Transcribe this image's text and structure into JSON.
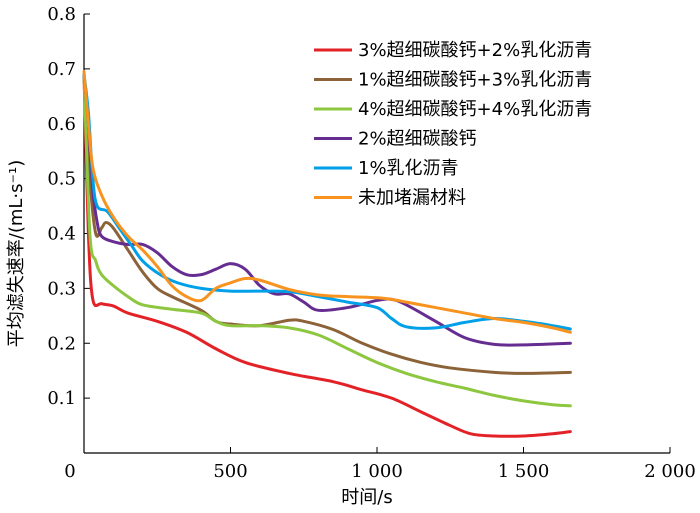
{
  "chart_data": {
    "type": "line",
    "title": "",
    "xlabel": "时间/s",
    "ylabel": "平均滤失速率/(mL·s⁻¹)",
    "xlim": [
      0,
      2000
    ],
    "ylim": [
      0,
      0.8
    ],
    "x_ticks": [
      0,
      500,
      1000,
      1500,
      2000
    ],
    "x_tick_labels": [
      "0",
      "500",
      "1 000",
      "1 500",
      "2 000"
    ],
    "y_ticks": [
      0.1,
      0.2,
      0.3,
      0.4,
      0.5,
      0.6,
      0.7,
      0.8
    ],
    "y_tick_labels": [
      "0.1",
      "0.2",
      "0.3",
      "0.4",
      "0.5",
      "0.6",
      "0.7",
      "0.8"
    ],
    "grid": false,
    "legend_position": "top-right",
    "series": [
      {
        "name": "3%超细碳酸钙+2%乳化沥青",
        "color": "#e32227",
        "points": [
          [
            0,
            0.69
          ],
          [
            15,
            0.4
          ],
          [
            30,
            0.28
          ],
          [
            60,
            0.272
          ],
          [
            100,
            0.268
          ],
          [
            150,
            0.255
          ],
          [
            250,
            0.24
          ],
          [
            350,
            0.22
          ],
          [
            450,
            0.19
          ],
          [
            550,
            0.165
          ],
          [
            700,
            0.145
          ],
          [
            850,
            0.13
          ],
          [
            950,
            0.115
          ],
          [
            1050,
            0.1
          ],
          [
            1150,
            0.075
          ],
          [
            1250,
            0.05
          ],
          [
            1320,
            0.035
          ],
          [
            1400,
            0.031
          ],
          [
            1500,
            0.031
          ],
          [
            1600,
            0.035
          ],
          [
            1660,
            0.039
          ]
        ]
      },
      {
        "name": "1%超细碳酸钙+3%乳化沥青",
        "color": "#8c6239",
        "points": [
          [
            0,
            0.69
          ],
          [
            20,
            0.5
          ],
          [
            40,
            0.4
          ],
          [
            60,
            0.41
          ],
          [
            75,
            0.42
          ],
          [
            100,
            0.41
          ],
          [
            150,
            0.37
          ],
          [
            200,
            0.33
          ],
          [
            250,
            0.3
          ],
          [
            300,
            0.285
          ],
          [
            400,
            0.26
          ],
          [
            450,
            0.24
          ],
          [
            500,
            0.235
          ],
          [
            600,
            0.232
          ],
          [
            700,
            0.242
          ],
          [
            750,
            0.24
          ],
          [
            850,
            0.225
          ],
          [
            950,
            0.2
          ],
          [
            1050,
            0.18
          ],
          [
            1150,
            0.165
          ],
          [
            1250,
            0.155
          ],
          [
            1400,
            0.147
          ],
          [
            1500,
            0.145
          ],
          [
            1660,
            0.147
          ]
        ]
      },
      {
        "name": "4%超细碳酸钙+4%乳化沥青",
        "color": "#8dc63f",
        "points": [
          [
            0,
            0.69
          ],
          [
            20,
            0.4
          ],
          [
            40,
            0.35
          ],
          [
            60,
            0.325
          ],
          [
            100,
            0.305
          ],
          [
            150,
            0.285
          ],
          [
            200,
            0.27
          ],
          [
            300,
            0.262
          ],
          [
            400,
            0.255
          ],
          [
            450,
            0.24
          ],
          [
            500,
            0.232
          ],
          [
            600,
            0.232
          ],
          [
            700,
            0.228
          ],
          [
            800,
            0.215
          ],
          [
            900,
            0.19
          ],
          [
            1000,
            0.165
          ],
          [
            1100,
            0.145
          ],
          [
            1200,
            0.13
          ],
          [
            1300,
            0.118
          ],
          [
            1400,
            0.105
          ],
          [
            1500,
            0.095
          ],
          [
            1600,
            0.088
          ],
          [
            1660,
            0.086
          ]
        ]
      },
      {
        "name": "2%超细碳酸钙",
        "color": "#662d91",
        "points": [
          [
            0,
            0.69
          ],
          [
            15,
            0.6
          ],
          [
            30,
            0.48
          ],
          [
            45,
            0.42
          ],
          [
            60,
            0.395
          ],
          [
            100,
            0.385
          ],
          [
            150,
            0.38
          ],
          [
            200,
            0.38
          ],
          [
            250,
            0.365
          ],
          [
            300,
            0.34
          ],
          [
            350,
            0.325
          ],
          [
            400,
            0.325
          ],
          [
            450,
            0.335
          ],
          [
            500,
            0.345
          ],
          [
            550,
            0.335
          ],
          [
            600,
            0.305
          ],
          [
            650,
            0.29
          ],
          [
            700,
            0.29
          ],
          [
            750,
            0.275
          ],
          [
            800,
            0.26
          ],
          [
            900,
            0.265
          ],
          [
            1000,
            0.278
          ],
          [
            1050,
            0.28
          ],
          [
            1100,
            0.27
          ],
          [
            1200,
            0.24
          ],
          [
            1300,
            0.21
          ],
          [
            1400,
            0.198
          ],
          [
            1500,
            0.197
          ],
          [
            1660,
            0.2
          ]
        ]
      },
      {
        "name": "1%乳化沥青",
        "color": "#00a0e9",
        "points": [
          [
            0,
            0.69
          ],
          [
            15,
            0.62
          ],
          [
            30,
            0.5
          ],
          [
            45,
            0.45
          ],
          [
            80,
            0.44
          ],
          [
            120,
            0.41
          ],
          [
            160,
            0.38
          ],
          [
            200,
            0.35
          ],
          [
            260,
            0.325
          ],
          [
            320,
            0.31
          ],
          [
            400,
            0.3
          ],
          [
            500,
            0.295
          ],
          [
            600,
            0.295
          ],
          [
            700,
            0.294
          ],
          [
            800,
            0.285
          ],
          [
            900,
            0.275
          ],
          [
            1000,
            0.265
          ],
          [
            1050,
            0.245
          ],
          [
            1100,
            0.23
          ],
          [
            1200,
            0.228
          ],
          [
            1300,
            0.238
          ],
          [
            1400,
            0.245
          ],
          [
            1500,
            0.24
          ],
          [
            1600,
            0.232
          ],
          [
            1660,
            0.226
          ]
        ]
      },
      {
        "name": "未加堵漏材料",
        "color": "#f7931e",
        "points": [
          [
            0,
            0.695
          ],
          [
            15,
            0.6
          ],
          [
            30,
            0.52
          ],
          [
            60,
            0.47
          ],
          [
            100,
            0.43
          ],
          [
            150,
            0.395
          ],
          [
            200,
            0.37
          ],
          [
            250,
            0.34
          ],
          [
            300,
            0.305
          ],
          [
            350,
            0.285
          ],
          [
            400,
            0.278
          ],
          [
            450,
            0.3
          ],
          [
            500,
            0.31
          ],
          [
            550,
            0.318
          ],
          [
            600,
            0.315
          ],
          [
            700,
            0.298
          ],
          [
            800,
            0.288
          ],
          [
            900,
            0.285
          ],
          [
            1000,
            0.283
          ],
          [
            1050,
            0.28
          ],
          [
            1100,
            0.275
          ],
          [
            1200,
            0.265
          ],
          [
            1300,
            0.255
          ],
          [
            1400,
            0.245
          ],
          [
            1500,
            0.238
          ],
          [
            1600,
            0.228
          ],
          [
            1660,
            0.22
          ]
        ]
      }
    ]
  }
}
